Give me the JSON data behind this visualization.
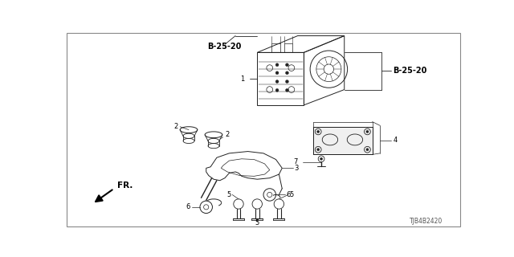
{
  "background_color": "#ffffff",
  "line_color": "#222222",
  "labels": {
    "B_25_20_top": "B-25-20",
    "B_25_20_right": "B-25-20",
    "label_1": "1",
    "label_2a": "2",
    "label_2b": "2",
    "label_3": "3",
    "label_4": "4",
    "label_5a": "5",
    "label_5b": "5",
    "label_5c": "5",
    "label_6a": "6",
    "label_6b": "6",
    "label_7": "7",
    "fr_label": "FR.",
    "part_number": "TJB4B2420"
  }
}
